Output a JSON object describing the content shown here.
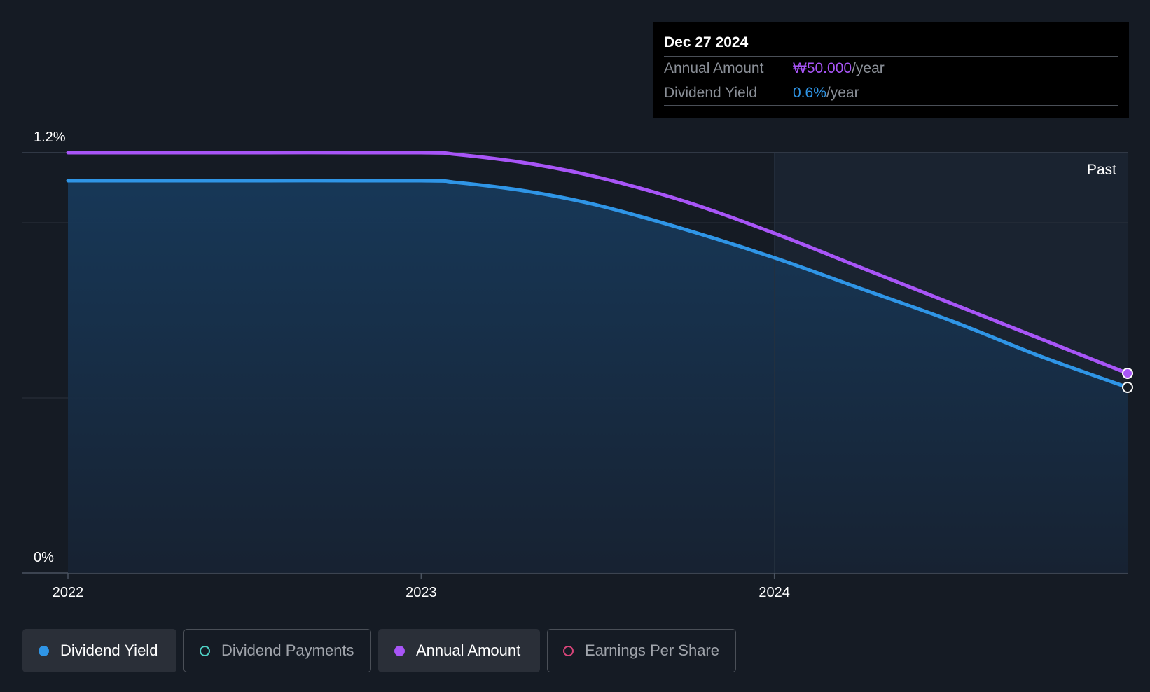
{
  "tooltip": {
    "date": "Dec 27 2024",
    "rows": [
      {
        "label": "Annual Amount",
        "value": "₩50.000",
        "unit": "/year",
        "color": "#a855f7"
      },
      {
        "label": "Dividend Yield",
        "value": "0.6%",
        "unit": "/year",
        "color": "#2f95e6"
      }
    ]
  },
  "past_label": "Past",
  "legend": [
    {
      "label": "Dividend Yield",
      "active": true,
      "color": "#2f95e6"
    },
    {
      "label": "Dividend Payments",
      "active": false,
      "color": "#4fd1c5"
    },
    {
      "label": "Annual Amount",
      "active": true,
      "color": "#a855f7"
    },
    {
      "label": "Earnings Per Share",
      "active": false,
      "color": "#d9457a"
    }
  ],
  "chart_data": {
    "type": "line",
    "title": "",
    "xlabel": "",
    "ylabel": "",
    "x_range": [
      2022.0,
      2025.0
    ],
    "ylim": [
      0,
      1.2
    ],
    "y_tick_labels": [
      "1.2%",
      "0%"
    ],
    "x_tick_labels": [
      "2022",
      "2023",
      "2024"
    ],
    "x_ticks": [
      2022,
      2023,
      2024
    ],
    "gridlines_y": [
      0.5,
      1.0
    ],
    "past_region_start": 2024.0,
    "series": [
      {
        "name": "Dividend Yield",
        "color": "#2f95e6",
        "area": true,
        "x": [
          2022.0,
          2022.5,
          2023.0,
          2023.1,
          2023.3,
          2023.5,
          2023.75,
          2024.0,
          2024.25,
          2024.5,
          2024.75,
          2025.0
        ],
        "y": [
          1.12,
          1.12,
          1.12,
          1.115,
          1.09,
          1.05,
          0.98,
          0.9,
          0.81,
          0.72,
          0.62,
          0.53
        ]
      },
      {
        "name": "Annual Amount",
        "color": "#a855f7",
        "area": false,
        "x": [
          2022.0,
          2022.5,
          2023.0,
          2023.1,
          2023.3,
          2023.5,
          2023.75,
          2024.0,
          2024.25,
          2024.5,
          2024.75,
          2025.0
        ],
        "y": [
          1.2,
          1.2,
          1.2,
          1.195,
          1.17,
          1.13,
          1.06,
          0.97,
          0.87,
          0.77,
          0.67,
          0.57
        ]
      }
    ]
  }
}
